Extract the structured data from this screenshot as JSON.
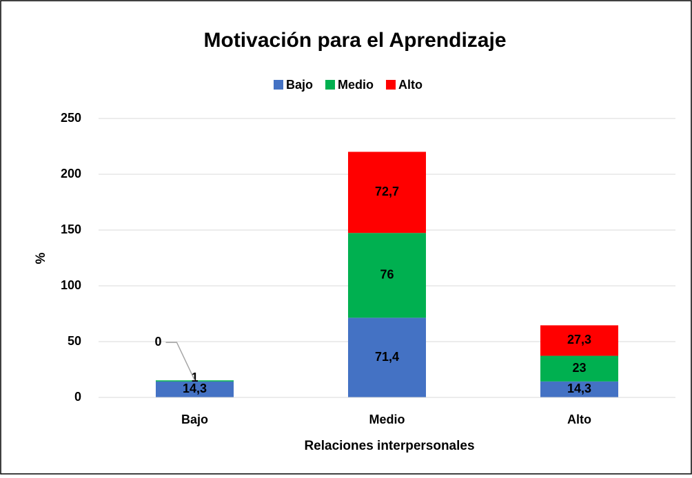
{
  "chart_data": {
    "type": "stacked_bar",
    "title": "Motivación para el  Aprendizaje",
    "x_label": "Relaciones interpersonales",
    "y_label": "%",
    "categories": [
      "Bajo",
      "Medio",
      "Alto"
    ],
    "series": [
      {
        "name": "Bajo",
        "color": "#4472c4",
        "values": [
          14.3,
          71.4,
          14.3
        ],
        "value_labels": [
          "14,3",
          "71,4",
          "14,3"
        ]
      },
      {
        "name": "Medio",
        "color": "#00b050",
        "values": [
          1,
          76,
          23
        ],
        "value_labels": [
          "1",
          "76",
          "23"
        ]
      },
      {
        "name": "Alto",
        "color": "#ff0000",
        "values": [
          0,
          72.7,
          27.3
        ],
        "value_labels": [
          "0",
          "72,7",
          "27,3"
        ]
      }
    ],
    "ylim": [
      0,
      250
    ],
    "yticks": [
      0,
      50,
      100,
      150,
      200,
      250
    ],
    "grid": true,
    "legend": "top"
  }
}
